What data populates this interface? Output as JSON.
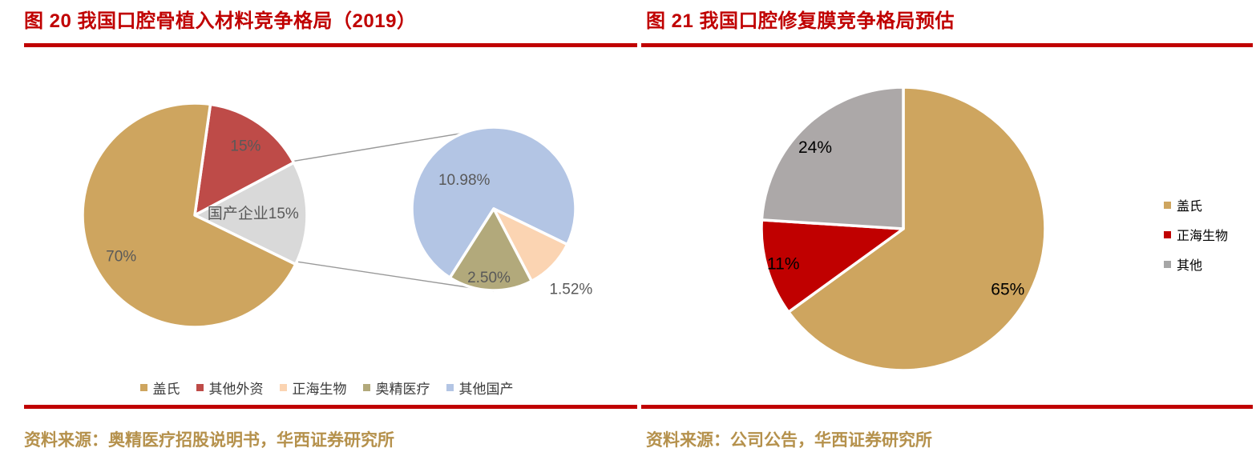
{
  "accent": {
    "title_red": "#C00000",
    "rule_red": "#C00000",
    "source_gold": "#B5914C",
    "pie_label_gray": "#595959",
    "connector_gray": "#999999"
  },
  "chart_data": [
    {
      "type": "pie",
      "variant": "pie-of-pie",
      "title": "图 20 我国口腔骨植入材料竞争格局（2019）",
      "source": "资料来源：奥精医疗招股说明书，华西证券研究所",
      "legend": {
        "position": "bottom",
        "entries": [
          {
            "id": "gaishi",
            "label": "盖氏",
            "color": "#CEA55F"
          },
          {
            "id": "other-foreign",
            "label": "其他外资",
            "color": "#BE4B48"
          },
          {
            "id": "zhenghai",
            "label": "正海生物",
            "color": "#FBD4B2"
          },
          {
            "id": "aojing",
            "label": "奥精医疗",
            "color": "#B2A97B"
          },
          {
            "id": "other-domestic",
            "label": "其他国产",
            "color": "#B3C5E4"
          }
        ]
      },
      "main_pie": {
        "unit": "%",
        "slices": [
          {
            "id": "gaishi",
            "name": "盖氏",
            "value": 70,
            "label": "70%",
            "color": "#CEA55F",
            "label_color": "#595959"
          },
          {
            "id": "other-foreign",
            "name": "其他外资",
            "value": 15,
            "label": "15%",
            "color": "#BE4B48",
            "label_color": "#595959"
          },
          {
            "id": "domestic-group",
            "name": "国产企业",
            "value": 15,
            "label": "国产企业15%",
            "color": "#D9D9D9",
            "label_color": "#595959"
          }
        ]
      },
      "secondary_pie": {
        "unit": "%",
        "note": "breakdown of 国产企业15%",
        "slices": [
          {
            "id": "zhenghai",
            "name": "正海生物",
            "value": 1.52,
            "label": "1.52%",
            "color": "#FBD4B2",
            "label_color": "#595959"
          },
          {
            "id": "aojing",
            "name": "奥精医疗",
            "value": 2.5,
            "label": "2.50%",
            "color": "#B2A97B",
            "label_color": "#595959"
          },
          {
            "id": "other-domestic",
            "name": "其他国产",
            "value": 10.98,
            "label": "10.98%",
            "color": "#B3C5E4",
            "label_color": "#595959"
          }
        ]
      }
    },
    {
      "type": "pie",
      "title": "图 21 我国口腔修复膜竞争格局预估",
      "source": "资料来源：公司公告，华西证券研究所",
      "legend": {
        "position": "right",
        "entries": [
          {
            "id": "gaishi",
            "label": "盖氏",
            "color": "#CEA55F"
          },
          {
            "id": "zhenghai",
            "label": "正海生物",
            "color": "#C00000"
          },
          {
            "id": "other",
            "label": "其他",
            "color": "#A6A6A6"
          }
        ]
      },
      "unit": "%",
      "slices": [
        {
          "id": "gaishi",
          "name": "盖氏",
          "value": 65,
          "label": "65%",
          "color": "#CEA55F",
          "label_color": "#000000"
        },
        {
          "id": "zhenghai",
          "name": "正海生物",
          "value": 11,
          "label": "11%",
          "color": "#C00000",
          "label_color": "#000000"
        },
        {
          "id": "other",
          "name": "其他",
          "value": 24,
          "label": "24%",
          "color": "#ACA8A8",
          "label_color": "#000000"
        }
      ]
    }
  ]
}
